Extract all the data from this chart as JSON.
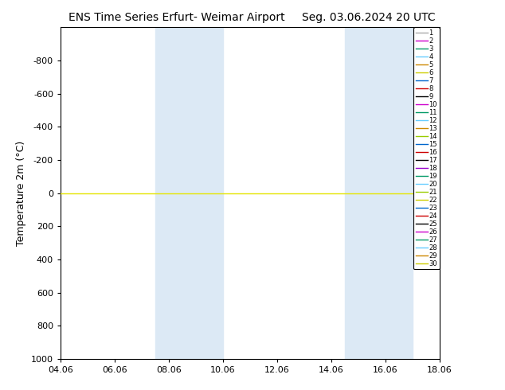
{
  "title_left": "ENS Time Series Erfurt- Weimar Airport",
  "title_right": "Seg. 03.06.2024 20 UTC",
  "ylabel": "Temperature 2m (°C)",
  "ylim_bottom": 1000,
  "ylim_top": -1000,
  "yticks": [
    -800,
    -600,
    -400,
    -200,
    0,
    200,
    400,
    600,
    800,
    1000
  ],
  "xtick_labels": [
    "04.06",
    "06.06",
    "08.06",
    "10.06",
    "12.06",
    "14.06",
    "16.06",
    "18.06"
  ],
  "xtick_positions": [
    0,
    2,
    4,
    6,
    8,
    10,
    12,
    14
  ],
  "xlim": [
    0,
    14
  ],
  "shade_bands": [
    [
      3.5,
      4.5
    ],
    [
      4.5,
      6.0
    ],
    [
      10.5,
      11.5
    ],
    [
      11.5,
      13.0
    ]
  ],
  "shade_color": "#dce9f5",
  "line_color": "#e5e500",
  "background_color": "#ffffff",
  "member_colors": [
    "#aaaaaa",
    "#cc00cc",
    "#009966",
    "#66ccff",
    "#cc8800",
    "#cccc00",
    "#0066cc",
    "#cc0000",
    "#000000",
    "#cc00cc",
    "#009966",
    "#66ccff",
    "#cc8800",
    "#99cc00",
    "#0066cc",
    "#cc0000",
    "#000000",
    "#9900cc",
    "#009966",
    "#66ccff",
    "#99cc00",
    "#cccc00",
    "#0066cc",
    "#cc0000",
    "#000000",
    "#cc00cc",
    "#009966",
    "#66ccff",
    "#cc8800",
    "#cccc00"
  ],
  "n_members": 30,
  "title_fontsize": 10,
  "axis_label_fontsize": 9,
  "tick_fontsize": 8,
  "legend_fontsize": 6
}
